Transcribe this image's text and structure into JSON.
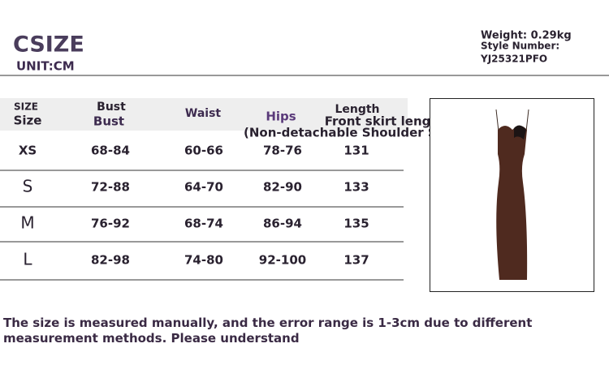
{
  "header": {
    "title": "CSIZE",
    "unit": "UNIT:CM",
    "weight": "Weight: 0.29kg",
    "style_label": "Style Number:",
    "style_number": "YJ25321PFO"
  },
  "table": {
    "headers": [
      [
        "SIZE",
        "Size"
      ],
      [
        "Bust",
        "Bust"
      ],
      [
        "Waist"
      ],
      [
        "Hips"
      ],
      [
        "Length",
        "Front skirt length",
        "(Non-detachable Shoulder Strap)"
      ]
    ],
    "rows": [
      [
        "XS",
        "68-84",
        "60-66",
        "78-76",
        "131"
      ],
      [
        "S",
        "72-88",
        "64-70",
        "82-90",
        "133"
      ],
      [
        "M",
        "76-92",
        "68-74",
        "86-94",
        "135"
      ],
      [
        "L",
        "82-98",
        "74-80",
        "92-100",
        "137"
      ]
    ]
  },
  "note": "The size is measured manually, and the error range is 1-3cm due to different measurement methods. Please understand"
}
